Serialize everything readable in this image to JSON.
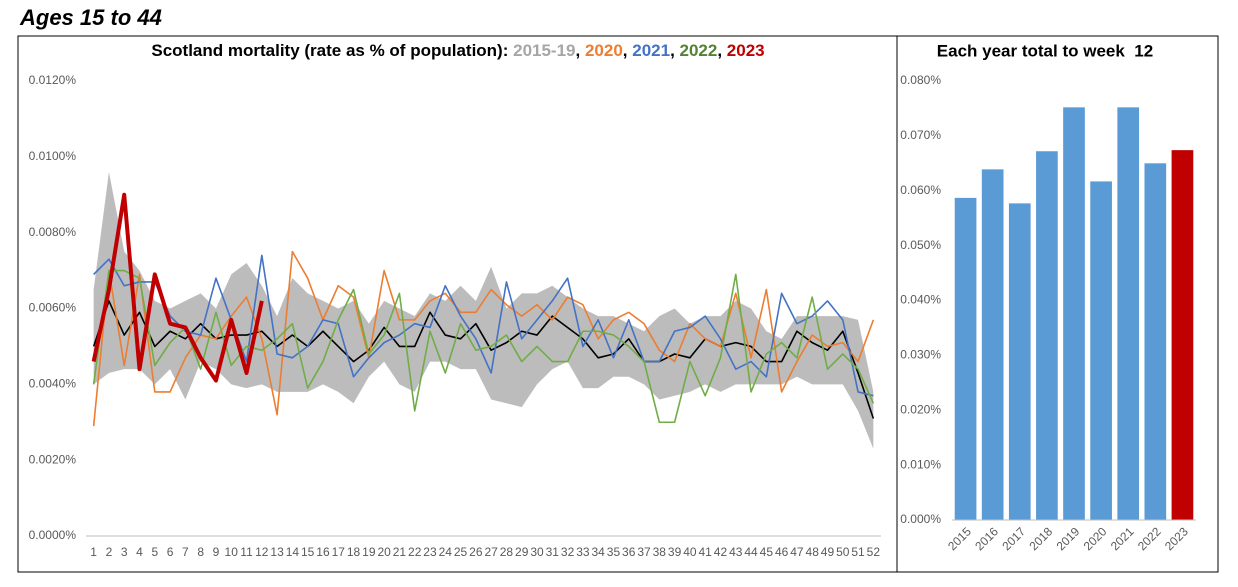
{
  "heading": "Ages 15 to 44",
  "chart_data": [
    {
      "type": "line",
      "title": "Scotland mortality (rate as % of population): ",
      "legend_separator": ", ",
      "categories": [
        1,
        2,
        3,
        4,
        5,
        6,
        7,
        8,
        9,
        10,
        11,
        12,
        13,
        14,
        15,
        16,
        17,
        18,
        19,
        20,
        21,
        22,
        23,
        24,
        25,
        26,
        27,
        28,
        29,
        30,
        31,
        32,
        33,
        34,
        35,
        36,
        37,
        38,
        39,
        40,
        41,
        42,
        43,
        44,
        45,
        46,
        47,
        48,
        49,
        50,
        51,
        52
      ],
      "ylim": [
        0,
        0.012
      ],
      "yticks": [
        {
          "value": 0,
          "label": "0.0000%"
        },
        {
          "value": 0.002,
          "label": "0.0020%"
        },
        {
          "value": 0.004,
          "label": "0.0040%"
        },
        {
          "value": 0.006,
          "label": "0.0060%"
        },
        {
          "value": 0.008,
          "label": "0.0080%"
        },
        {
          "value": 0.01,
          "label": "0.0100%"
        },
        {
          "value": 0.012,
          "label": "0.0120%"
        }
      ],
      "grid": false,
      "series": [
        {
          "name": "2015-19",
          "color": "#a6a6a6",
          "line_color": "#000000",
          "values": [
            0.005,
            0.0062,
            0.0053,
            0.0059,
            0.005,
            0.0054,
            0.0052,
            0.0056,
            0.0052,
            0.0053,
            0.0053,
            0.0054,
            0.005,
            0.0053,
            0.005,
            0.0054,
            0.005,
            0.0046,
            0.0049,
            0.0055,
            0.005,
            0.005,
            0.0059,
            0.0053,
            0.0052,
            0.0056,
            0.0049,
            0.0051,
            0.0054,
            0.0053,
            0.0058,
            0.0055,
            0.0052,
            0.0047,
            0.0048,
            0.0052,
            0.0046,
            0.0046,
            0.0048,
            0.0047,
            0.0052,
            0.005,
            0.0051,
            0.005,
            0.0046,
            0.0046,
            0.0054,
            0.0051,
            0.0049,
            0.0054,
            0.0043,
            0.0031
          ],
          "upper": [
            0.0065,
            0.0096,
            0.0075,
            0.007,
            0.0062,
            0.006,
            0.0062,
            0.0064,
            0.006,
            0.0069,
            0.0072,
            0.0066,
            0.0058,
            0.0068,
            0.0064,
            0.0062,
            0.006,
            0.0062,
            0.0056,
            0.0062,
            0.006,
            0.0058,
            0.0064,
            0.0062,
            0.0066,
            0.0062,
            0.0071,
            0.006,
            0.0064,
            0.0064,
            0.0066,
            0.0063,
            0.006,
            0.0058,
            0.0058,
            0.0056,
            0.0054,
            0.0058,
            0.006,
            0.0056,
            0.0058,
            0.0058,
            0.0062,
            0.006,
            0.0054,
            0.0052,
            0.0058,
            0.0058,
            0.0058,
            0.0058,
            0.0057,
            0.0038
          ],
          "lower": [
            0.004,
            0.0043,
            0.0044,
            0.0044,
            0.004,
            0.0044,
            0.0036,
            0.0046,
            0.0044,
            0.004,
            0.0039,
            0.004,
            0.0038,
            0.0038,
            0.0038,
            0.004,
            0.0038,
            0.0035,
            0.0042,
            0.0046,
            0.004,
            0.0038,
            0.0046,
            0.0046,
            0.0044,
            0.0044,
            0.0036,
            0.0035,
            0.0034,
            0.004,
            0.0044,
            0.0046,
            0.0039,
            0.0039,
            0.0042,
            0.0042,
            0.004,
            0.0036,
            0.0037,
            0.0038,
            0.004,
            0.0038,
            0.004,
            0.004,
            0.004,
            0.004,
            0.0042,
            0.004,
            0.004,
            0.004,
            0.0033,
            0.0023
          ]
        },
        {
          "name": "2020",
          "color": "#ed7d31",
          "values": [
            0.0029,
            0.007,
            0.0045,
            0.0069,
            0.0038,
            0.0038,
            0.0047,
            0.0053,
            0.0052,
            0.0058,
            0.0063,
            0.0052,
            0.0032,
            0.0075,
            0.0068,
            0.0057,
            0.0066,
            0.0063,
            0.0047,
            0.007,
            0.0057,
            0.0057,
            0.0062,
            0.0064,
            0.0059,
            0.0059,
            0.0065,
            0.0061,
            0.0058,
            0.0061,
            0.0057,
            0.0063,
            0.0061,
            0.0052,
            0.0057,
            0.0059,
            0.0056,
            0.0049,
            0.0046,
            0.0056,
            0.0052,
            0.005,
            0.0064,
            0.0047,
            0.0065,
            0.0038,
            0.0046,
            0.0053,
            0.005,
            0.0051,
            0.0046,
            0.0057
          ]
        },
        {
          "name": "2021",
          "color": "#4472c4",
          "values": [
            0.0069,
            0.0073,
            0.0066,
            0.0067,
            0.0067,
            0.0058,
            0.0054,
            0.0053,
            0.0068,
            0.0057,
            0.0046,
            0.0074,
            0.0048,
            0.0047,
            0.005,
            0.0057,
            0.0056,
            0.0042,
            0.0047,
            0.0051,
            0.0053,
            0.0056,
            0.0055,
            0.0066,
            0.0058,
            0.0052,
            0.0043,
            0.0067,
            0.0052,
            0.0057,
            0.0062,
            0.0068,
            0.005,
            0.0057,
            0.0047,
            0.0057,
            0.0046,
            0.0046,
            0.0054,
            0.0055,
            0.0058,
            0.0052,
            0.0044,
            0.0046,
            0.0042,
            0.0064,
            0.0056,
            0.0058,
            0.0062,
            0.0057,
            0.0038,
            0.0037
          ]
        },
        {
          "name": "2022",
          "color": "#548235",
          "line_color": "#70ad47",
          "values": [
            0.004,
            0.007,
            0.007,
            0.0068,
            0.0045,
            0.0051,
            0.0055,
            0.0044,
            0.0059,
            0.0045,
            0.005,
            0.0049,
            0.0052,
            0.0056,
            0.0039,
            0.0046,
            0.0057,
            0.0065,
            0.0048,
            0.0053,
            0.0064,
            0.0033,
            0.0054,
            0.0043,
            0.0056,
            0.0049,
            0.005,
            0.0053,
            0.0046,
            0.005,
            0.0046,
            0.0046,
            0.0054,
            0.0054,
            0.0053,
            0.005,
            0.0046,
            0.003,
            0.003,
            0.0046,
            0.0037,
            0.0047,
            0.0069,
            0.0038,
            0.0048,
            0.0051,
            0.0047,
            0.0063,
            0.0044,
            0.0048,
            0.0044,
            0.0035
          ]
        },
        {
          "name": "2023",
          "color": "#c00000",
          "width": 4,
          "values": [
            0.0046,
            0.0065,
            0.009,
            0.0044,
            0.0069,
            0.0056,
            0.0055,
            0.0047,
            0.0041,
            0.0057,
            0.0043,
            0.0062,
            null,
            null,
            null,
            null,
            null,
            null,
            null,
            null,
            null,
            null,
            null,
            null,
            null,
            null,
            null,
            null,
            null,
            null,
            null,
            null,
            null,
            null,
            null,
            null,
            null,
            null,
            null,
            null,
            null,
            null,
            null,
            null,
            null,
            null,
            null,
            null,
            null,
            null,
            null,
            null
          ]
        }
      ]
    },
    {
      "type": "bar",
      "title": "Each year total to week  12",
      "categories": [
        "2015",
        "2016",
        "2017",
        "2018",
        "2019",
        "2020",
        "2021",
        "2022",
        "2023"
      ],
      "values": [
        0.0587,
        0.0639,
        0.0577,
        0.0672,
        0.0752,
        0.0617,
        0.0752,
        0.065,
        0.0674
      ],
      "colors": [
        "#5b9bd5",
        "#5b9bd5",
        "#5b9bd5",
        "#5b9bd5",
        "#5b9bd5",
        "#5b9bd5",
        "#5b9bd5",
        "#5b9bd5",
        "#c00000"
      ],
      "ylim": [
        0,
        0.08
      ],
      "yticks": [
        {
          "value": 0,
          "label": "0.000%"
        },
        {
          "value": 0.01,
          "label": "0.010%"
        },
        {
          "value": 0.02,
          "label": "0.020%"
        },
        {
          "value": 0.03,
          "label": "0.030%"
        },
        {
          "value": 0.04,
          "label": "0.040%"
        },
        {
          "value": 0.05,
          "label": "0.050%"
        },
        {
          "value": 0.06,
          "label": "0.060%"
        },
        {
          "value": 0.07,
          "label": "0.070%"
        },
        {
          "value": 0.08,
          "label": "0.080%"
        }
      ],
      "grid": false
    }
  ]
}
